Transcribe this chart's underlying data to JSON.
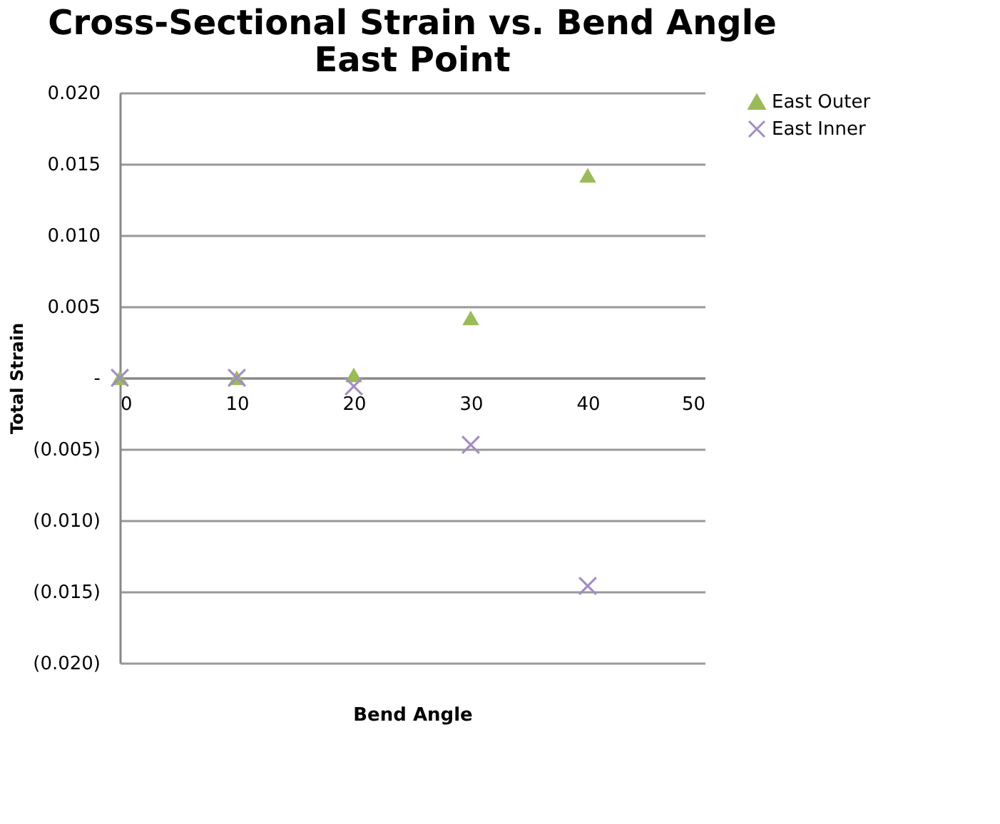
{
  "chart_data": {
    "type": "scatter",
    "title": [
      "Cross-Sectional Strain vs. Bend Angle",
      "East Point"
    ],
    "xlabel": "Bend Angle",
    "ylabel": "Total Strain",
    "x": [
      0,
      10,
      20,
      30,
      40
    ],
    "series": [
      {
        "name": "East Outer",
        "color": "#9bbb59",
        "marker": "triangle",
        "values": [
          0,
          0,
          0.0002,
          0.0042,
          0.0142
        ]
      },
      {
        "name": "East Inner",
        "color": "#a28cc4",
        "marker": "cross",
        "values": [
          0,
          0,
          -0.0006,
          -0.0047,
          -0.0146
        ]
      }
    ],
    "xlim": [
      0,
      50
    ],
    "xticks": [
      0,
      10,
      20,
      30,
      40,
      50
    ],
    "ylim": [
      -0.02,
      0.02
    ],
    "yticks": [
      {
        "value": 0.02,
        "label": "0.020"
      },
      {
        "value": 0.015,
        "label": "0.015"
      },
      {
        "value": 0.01,
        "label": "0.010"
      },
      {
        "value": 0.005,
        "label": "0.005"
      },
      {
        "value": 0,
        "label": "-"
      },
      {
        "value": -0.005,
        "label": "(0.005)"
      },
      {
        "value": -0.01,
        "label": "(0.010)"
      },
      {
        "value": -0.015,
        "label": "(0.015)"
      },
      {
        "value": -0.02,
        "label": "(0.020)"
      }
    ],
    "grid": "y",
    "legend": "right"
  }
}
